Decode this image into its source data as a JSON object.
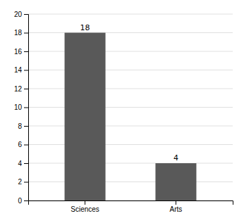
{
  "chart_data": {
    "type": "bar",
    "categories": [
      "Sciences",
      "Arts"
    ],
    "values": [
      18,
      4
    ],
    "color": "#595959",
    "ylim": [
      0,
      20
    ],
    "yticks": [
      0,
      2,
      4,
      6,
      8,
      10,
      12,
      14,
      16,
      18,
      20
    ],
    "grid": true,
    "data_labels": true
  }
}
